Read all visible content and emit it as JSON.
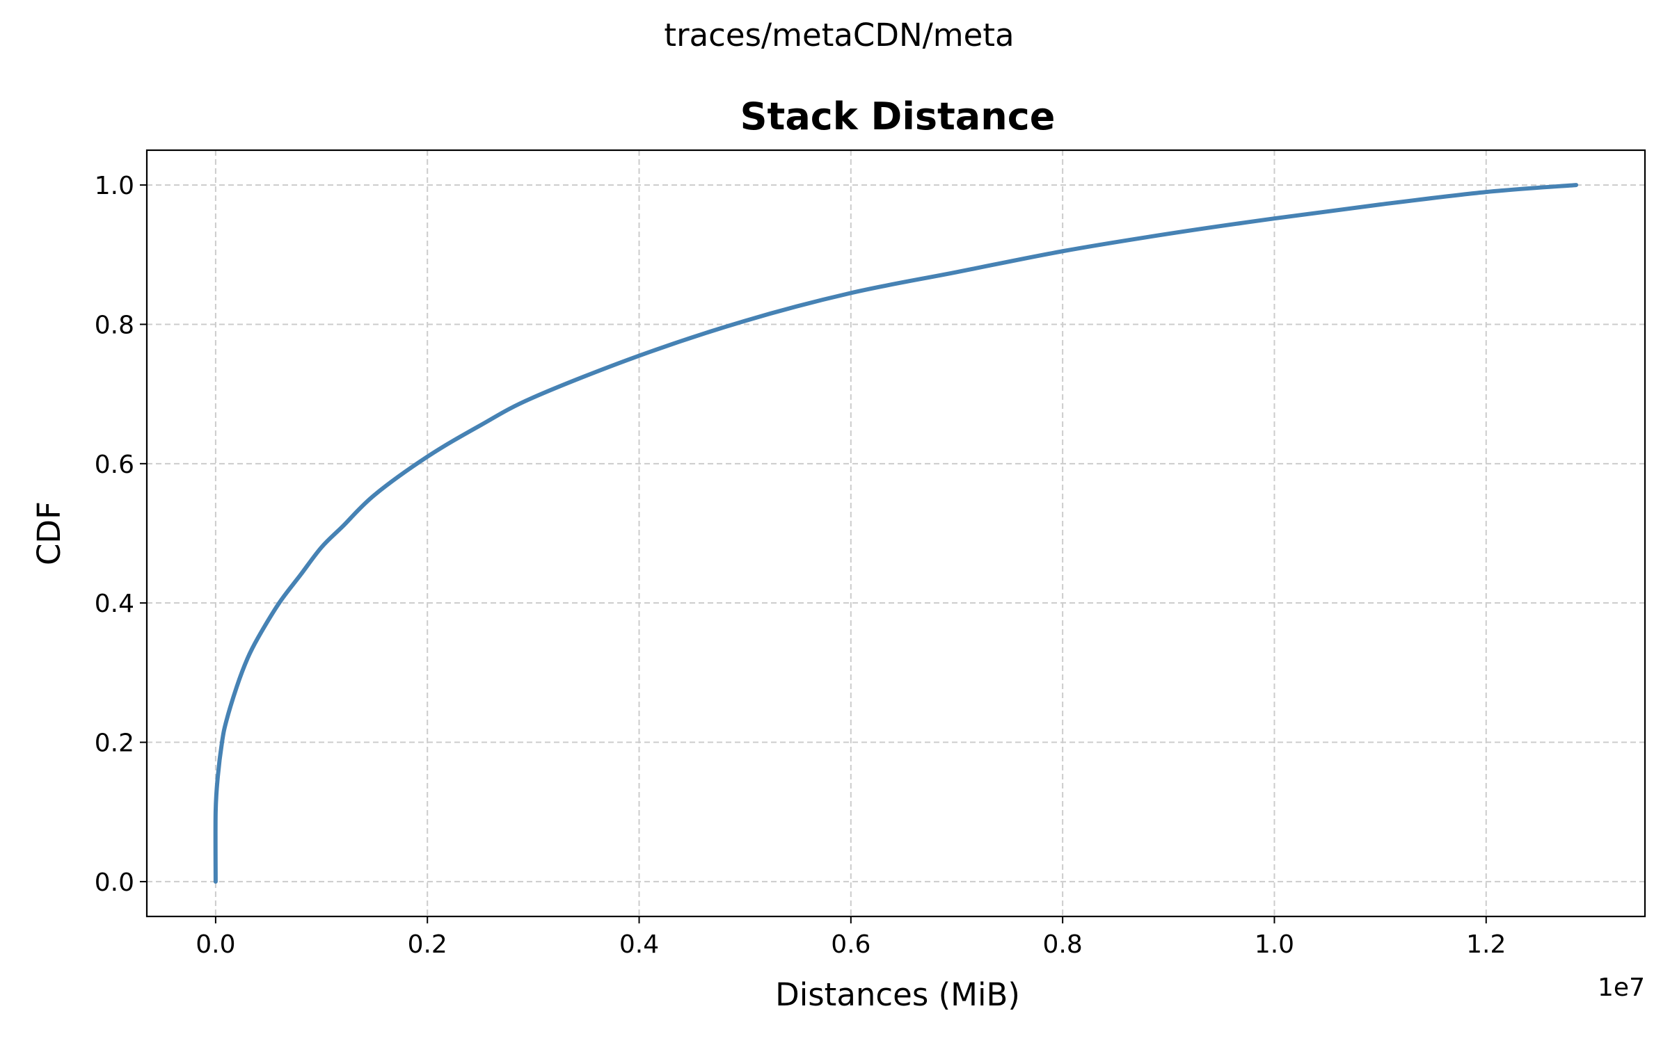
{
  "chart_data": {
    "type": "line",
    "suptitle": "traces/metaCDN/meta",
    "title": "Stack Distance",
    "xlabel": "Distances (MiB)",
    "ylabel": "CDF",
    "x_offset_label": "1e7",
    "xlim": [
      -650000,
      13500000
    ],
    "ylim": [
      -0.05,
      1.05
    ],
    "x_ticks": [
      0,
      2000000,
      4000000,
      6000000,
      8000000,
      10000000,
      12000000
    ],
    "x_tick_labels": [
      "0.0",
      "0.2",
      "0.4",
      "0.6",
      "0.8",
      "1.0",
      "1.2"
    ],
    "y_ticks": [
      0.0,
      0.2,
      0.4,
      0.6,
      0.8,
      1.0
    ],
    "y_tick_labels": [
      "0.0",
      "0.2",
      "0.4",
      "0.6",
      "0.8",
      "1.0"
    ],
    "grid": true,
    "series": [
      {
        "color": "#4682b4",
        "x": [
          0,
          0,
          20000,
          60000,
          100000,
          200000,
          300000,
          400000,
          600000,
          800000,
          1000000,
          1200000,
          1500000,
          2000000,
          2500000,
          3000000,
          4000000,
          5000000,
          6000000,
          7000000,
          8000000,
          9000000,
          10000000,
          11000000,
          12000000,
          12850000
        ],
        "y": [
          0.0,
          0.1,
          0.15,
          0.2,
          0.23,
          0.28,
          0.32,
          0.35,
          0.4,
          0.44,
          0.48,
          0.51,
          0.555,
          0.61,
          0.655,
          0.695,
          0.755,
          0.805,
          0.845,
          0.875,
          0.905,
          0.93,
          0.952,
          0.972,
          0.99,
          1.0
        ]
      }
    ]
  }
}
